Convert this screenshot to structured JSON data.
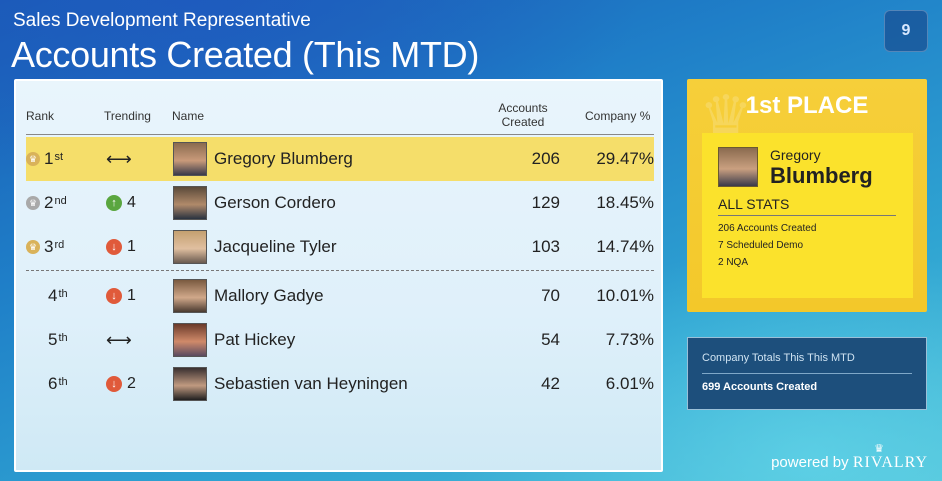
{
  "header": {
    "subtitle": "Sales Development Representative",
    "title": "Accounts Created (This MTD)",
    "page_number": "9"
  },
  "table": {
    "columns": {
      "rank": "Rank",
      "trending": "Trending",
      "name": "Name",
      "accounts_line1": "Accounts",
      "accounts_line2": "Created",
      "company_pct": "Company %"
    },
    "rows": [
      {
        "rank": "1",
        "suffix": "st",
        "crown": "gold-crown-icon",
        "trend_dir": "none",
        "trend": "",
        "name": "Gregory Blumberg",
        "accounts": "206",
        "pct": "29.47%"
      },
      {
        "rank": "2",
        "suffix": "nd",
        "crown": "silver-crown-icon",
        "trend_dir": "up",
        "trend": "4",
        "name": "Gerson Cordero",
        "accounts": "129",
        "pct": "18.45%"
      },
      {
        "rank": "3",
        "suffix": "rd",
        "crown": "bronze-crown-icon",
        "trend_dir": "down",
        "trend": "1",
        "name": "Jacqueline Tyler",
        "accounts": "103",
        "pct": "14.74%"
      },
      {
        "rank": "4",
        "suffix": "th",
        "crown": "",
        "trend_dir": "down",
        "trend": "1",
        "name": "Mallory Gadye",
        "accounts": "70",
        "pct": "10.01%"
      },
      {
        "rank": "5",
        "suffix": "th",
        "crown": "",
        "trend_dir": "none",
        "trend": "",
        "name": "Pat Hickey",
        "accounts": "54",
        "pct": "7.73%"
      },
      {
        "rank": "6",
        "suffix": "th",
        "crown": "",
        "trend_dir": "down",
        "trend": "2",
        "name": "Sebastien van Heyningen",
        "accounts": "42",
        "pct": "6.01%"
      }
    ]
  },
  "first_place": {
    "title": "1st PLACE",
    "first_name": "Gregory",
    "last_name": "Blumberg",
    "stats_header": "ALL STATS",
    "stats": [
      "206 Accounts Created",
      "7 Scheduled Demo",
      "2 NQA"
    ]
  },
  "totals": {
    "label": "Company Totals This This MTD",
    "value": "699 Accounts Created"
  },
  "footer": {
    "powered_by": "powered by",
    "brand": "RIVALRY"
  },
  "colors": {
    "highlight_row": "#f5de6a",
    "place_card": "#f6cf3a",
    "trend_up": "#5aa63f",
    "trend_down": "#e05a3a",
    "totals_card": "#1d4f7c"
  }
}
